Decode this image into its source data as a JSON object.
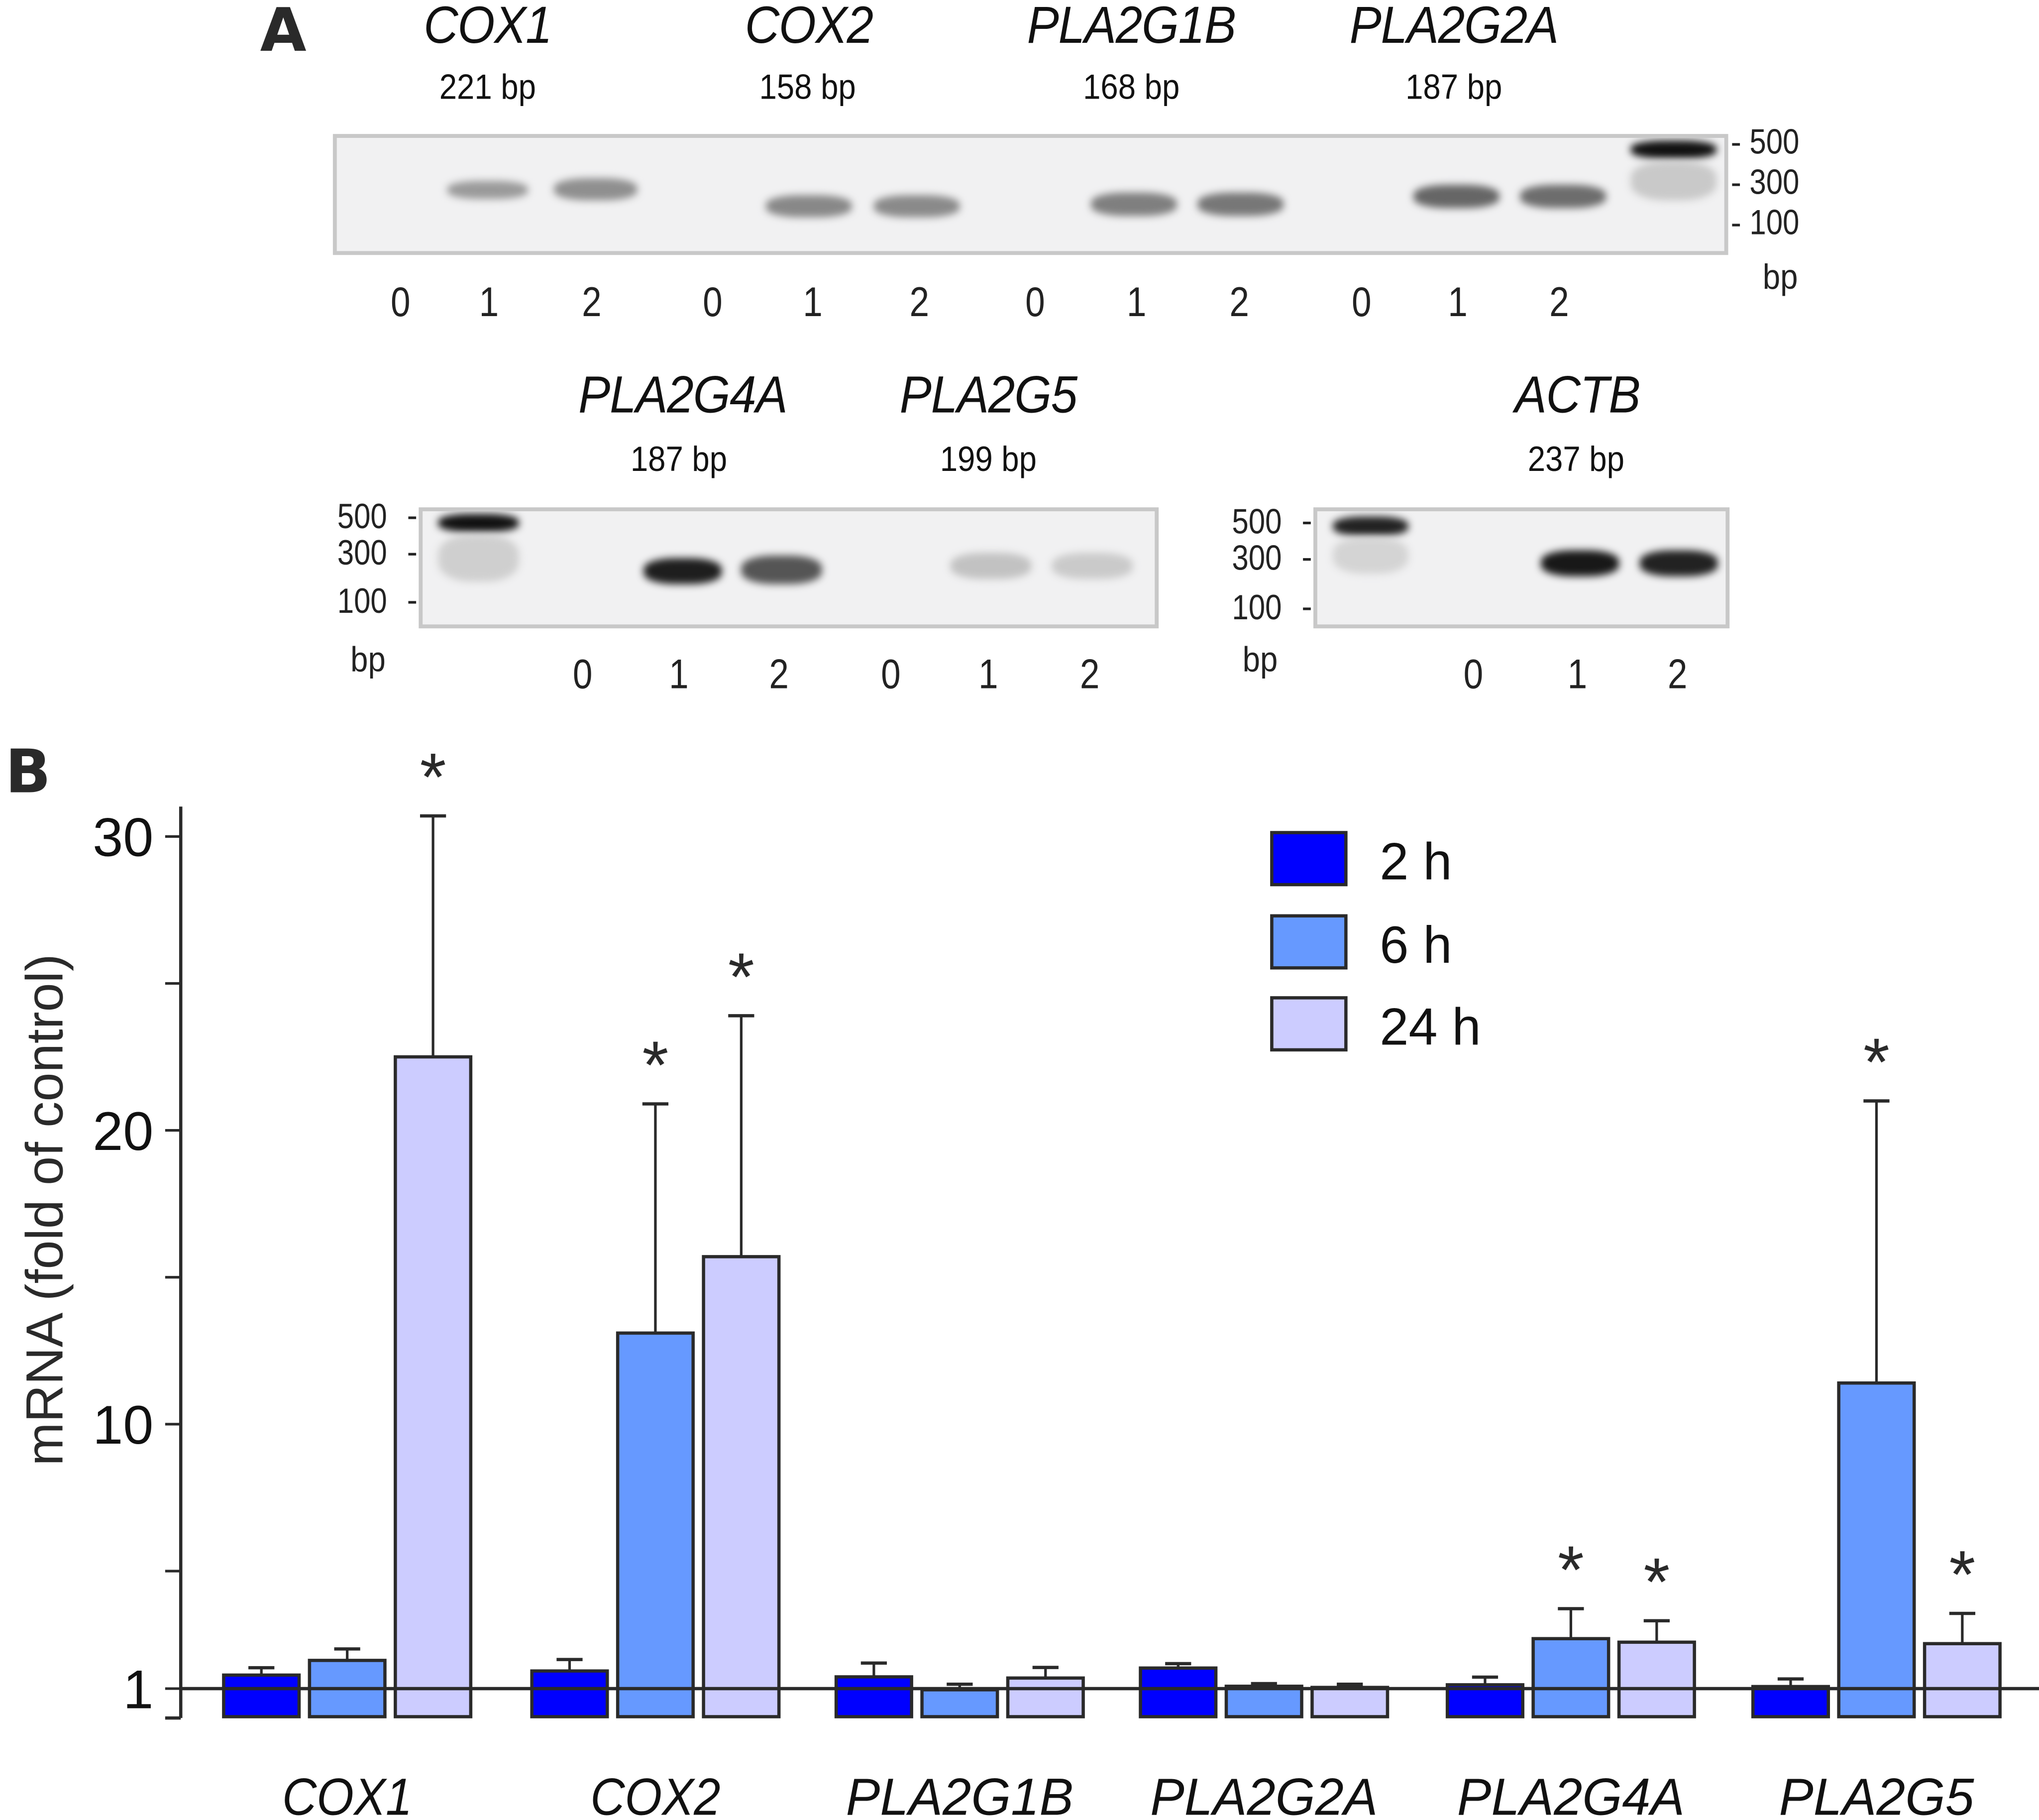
{
  "panel_a": {
    "letter": "A",
    "top_gel": {
      "genes": [
        {
          "name": "COX1",
          "size": "221 bp"
        },
        {
          "name": "COX2",
          "size": "158 bp"
        },
        {
          "name": "PLA2G1B",
          "size": "168 bp"
        },
        {
          "name": "PLA2G2A",
          "size": "187 bp"
        }
      ],
      "lane_labels": [
        "0",
        "1",
        "2",
        "0",
        "1",
        "2",
        "0",
        "1",
        "2",
        "0",
        "1",
        "2"
      ],
      "markers": [
        "500",
        "300",
        "100"
      ],
      "unit": "bp"
    },
    "bottom_left_gel": {
      "genes": [
        {
          "name": "PLA2G4A",
          "size": "187 bp"
        },
        {
          "name": "PLA2G5",
          "size": "199 bp"
        }
      ],
      "lane_labels": [
        "0",
        "1",
        "2",
        "0",
        "1",
        "2"
      ],
      "markers": [
        "500",
        "300",
        "100"
      ],
      "unit": "bp"
    },
    "bottom_right_gel": {
      "genes": [
        {
          "name": "ACTB",
          "size": "237 bp"
        }
      ],
      "lane_labels": [
        "0",
        "1",
        "2"
      ],
      "markers": [
        "500",
        "300",
        "100"
      ],
      "unit": "bp"
    }
  },
  "panel_b": {
    "letter": "B"
  },
  "chart_data": {
    "type": "bar",
    "title": "",
    "xlabel": "",
    "ylabel": "mRNA (fold of control)",
    "ylim": [
      0,
      31
    ],
    "baseline": 1,
    "yticks_major": [
      1,
      10,
      20,
      30
    ],
    "yticks_minor": [
      5,
      15,
      25
    ],
    "grid": false,
    "legend_position": "top-right",
    "categories": [
      "COX1",
      "COX2",
      "PLA2G1B",
      "PLA2G2A",
      "PLA2G4A",
      "PLA2G5"
    ],
    "series": [
      {
        "name": "2 h",
        "color": "#0000ff",
        "values": [
          1.46,
          1.6,
          1.4,
          1.7,
          1.13,
          1.07
        ],
        "errors": [
          0.25,
          0.39,
          0.47,
          0.15,
          0.26,
          0.26
        ],
        "significant": [
          false,
          false,
          false,
          false,
          false,
          false
        ]
      },
      {
        "name": "6 h",
        "color": "#6699ff",
        "values": [
          1.96,
          13.1,
          0.96,
          1.08,
          2.7,
          11.4
        ],
        "errors": [
          0.39,
          7.8,
          0.19,
          0.09,
          1.02,
          9.6
        ],
        "significant": [
          false,
          true,
          false,
          false,
          true,
          true
        ]
      },
      {
        "name": "24 h",
        "color": "#ccccff",
        "values": [
          22.5,
          15.7,
          1.36,
          1.04,
          2.58,
          2.53
        ],
        "errors": [
          8.2,
          8.2,
          0.36,
          0.11,
          0.73,
          1.03
        ],
        "significant": [
          true,
          true,
          false,
          false,
          true,
          true
        ]
      }
    ],
    "significance_marker": "*"
  }
}
